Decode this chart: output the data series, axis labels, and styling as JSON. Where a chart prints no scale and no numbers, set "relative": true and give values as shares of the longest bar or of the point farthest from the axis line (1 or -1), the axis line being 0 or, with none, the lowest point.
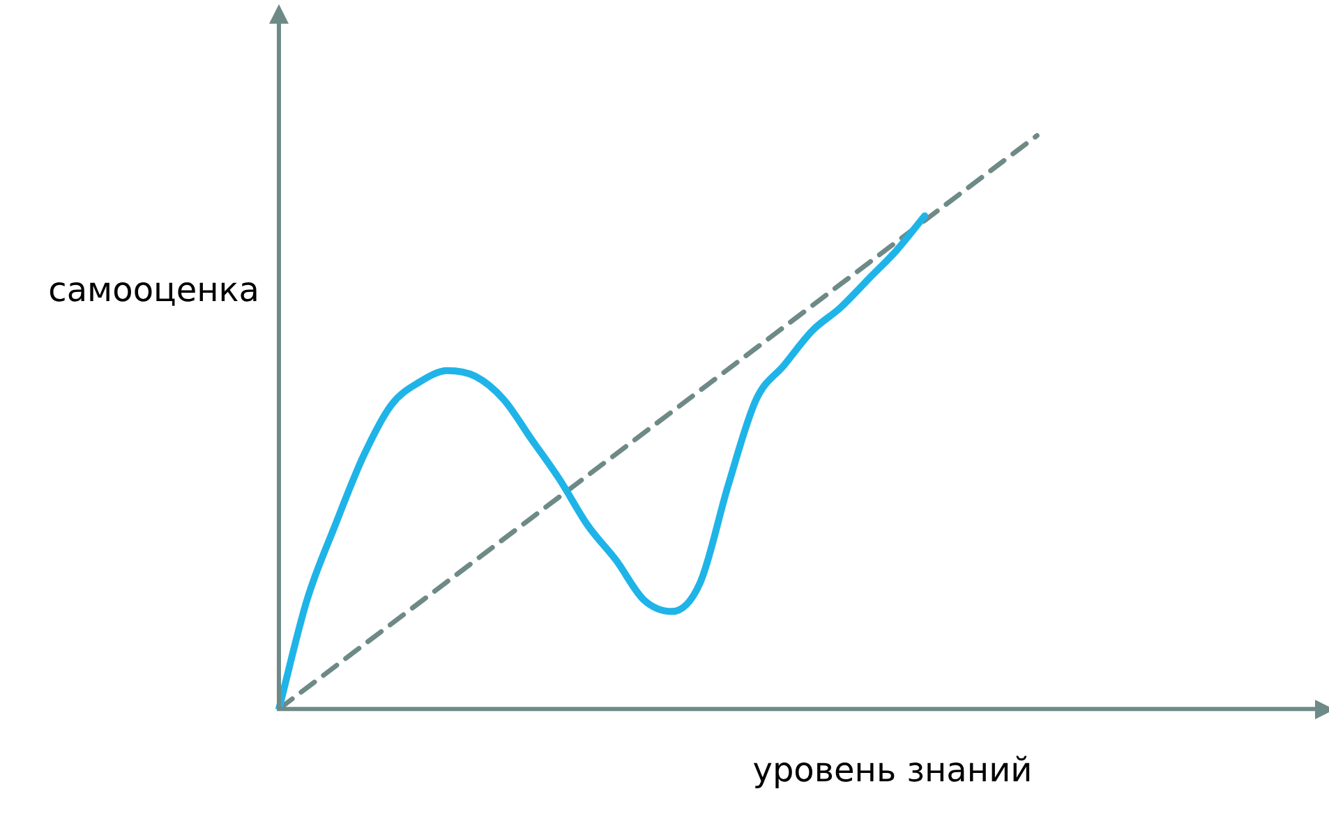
{
  "chart_data": {
    "type": "line",
    "relative": true,
    "xlabel": "уровень знаний",
    "ylabel": "самооценка",
    "legend": false,
    "marker": "none",
    "categories": [
      null,
      null,
      null,
      null,
      null,
      null,
      null,
      null,
      null,
      null,
      null,
      null,
      null,
      null,
      null,
      null,
      null,
      null,
      null,
      null,
      null,
      null,
      null,
      null,
      null,
      null,
      null,
      null,
      null,
      null,
      null,
      null,
      null,
      null,
      null,
      null,
      null,
      null
    ],
    "series": [
      {
        "color": "#1fb4e8",
        "line_style": "solid",
        "values": [
          0,
          0.19,
          0.32,
          0.44,
          0.53,
          0.57,
          0.59,
          0.58,
          0.54,
          0.47,
          0.4,
          0.32,
          0.26,
          0.19,
          0.17,
          0.22,
          0.39,
          0.54,
          0.6,
          0.66,
          0.7,
          0.75,
          0.8,
          0.86,
          null,
          null,
          null,
          null,
          null,
          null,
          null,
          null,
          null,
          null,
          null,
          null,
          null,
          null
        ]
      },
      {
        "color": "#6e8a87",
        "line_style": "dashed",
        "values": [
          0,
          null,
          null,
          null,
          null,
          null,
          null,
          null,
          null,
          null,
          null,
          null,
          null,
          null,
          null,
          null,
          null,
          null,
          null,
          null,
          null,
          null,
          null,
          null,
          null,
          null,
          null,
          1,
          null,
          null,
          null,
          null,
          null,
          null,
          null,
          null,
          null,
          null
        ]
      }
    ]
  }
}
